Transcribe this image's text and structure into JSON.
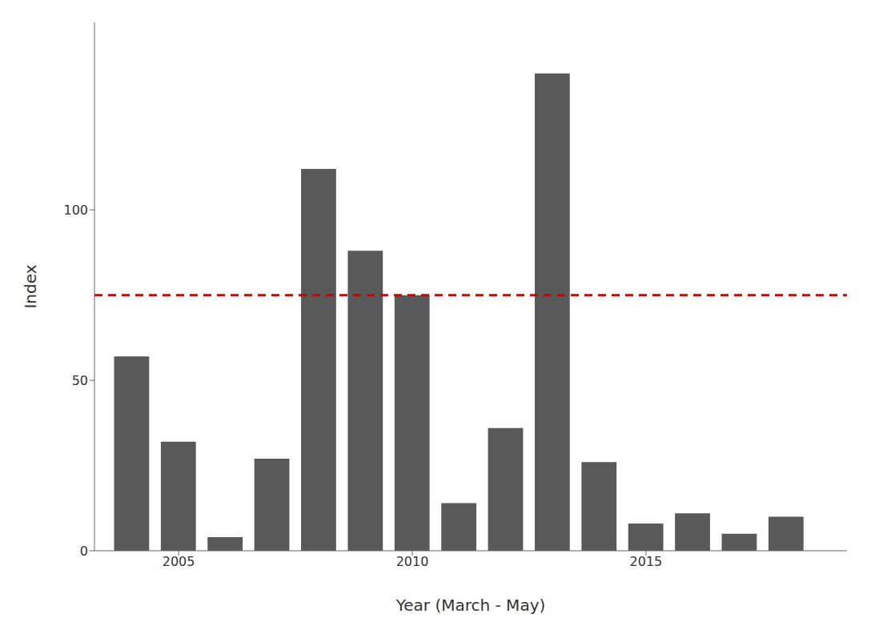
{
  "chart_data": {
    "type": "bar",
    "x": [
      2004,
      2005,
      2006,
      2007,
      2008,
      2009,
      2010,
      2011,
      2012,
      2013,
      2014,
      2015,
      2016,
      2017,
      2018
    ],
    "values": [
      57,
      32,
      4,
      27,
      112,
      88,
      75,
      14,
      36,
      140,
      26,
      8,
      11,
      5,
      10
    ],
    "color": "#595959",
    "xlabel": "Year (March - May)",
    "ylabel": "Index",
    "xlim": [
      2003.2,
      2019.3
    ],
    "ylim": [
      0,
      155
    ],
    "xticks": [
      2005,
      2010,
      2015
    ],
    "yticks": [
      0,
      50,
      100
    ],
    "grid": false,
    "reference_line": {
      "value": 75,
      "color": "#CC0000",
      "line_style": "dashed"
    }
  }
}
